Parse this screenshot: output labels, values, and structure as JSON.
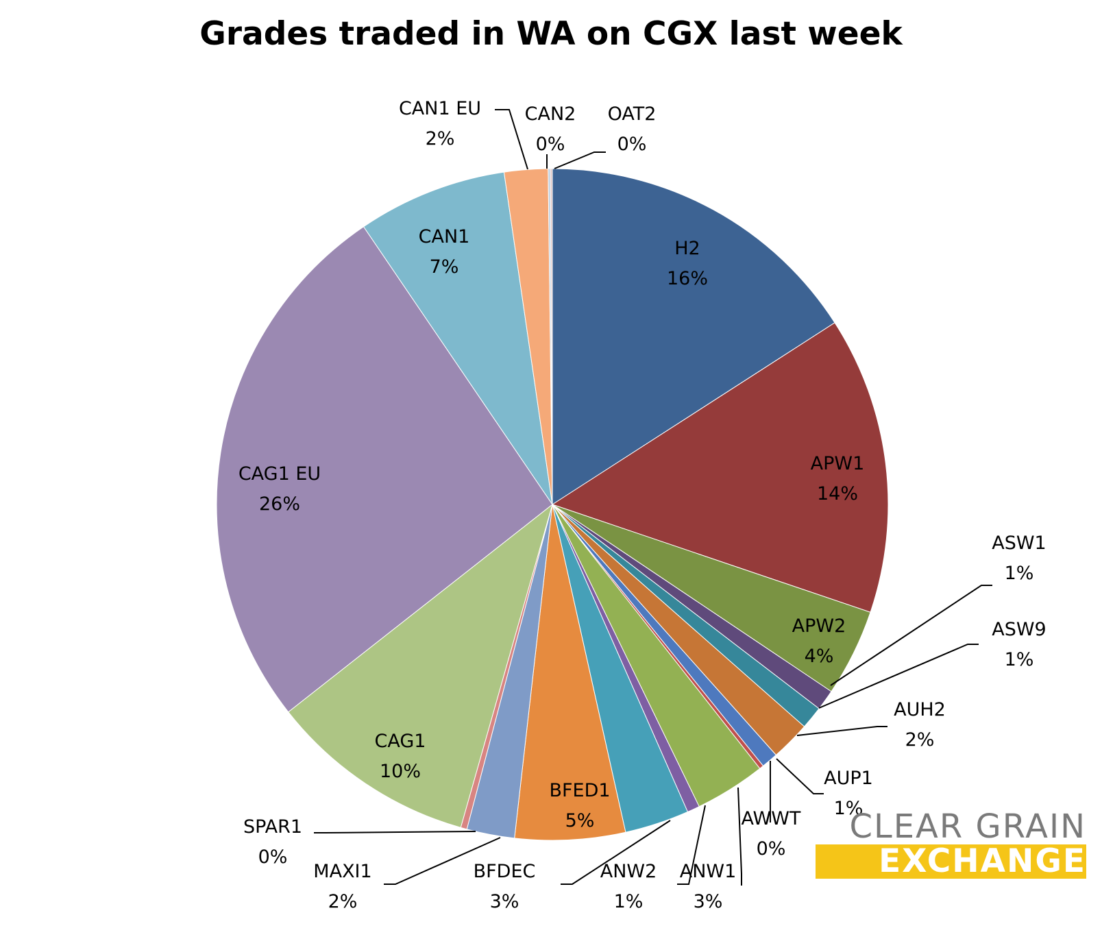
{
  "chart_data": {
    "type": "pie",
    "title": "Grades traded in WA on CGX last week",
    "slices": [
      {
        "name": "H2",
        "label": "16%",
        "value": 15.9,
        "color": "#3d6393"
      },
      {
        "name": "APW1",
        "label": "14%",
        "value": 14.3,
        "color": "#953b3a"
      },
      {
        "name": "APW2",
        "label": "4%",
        "value": 4.2,
        "color": "#7a9343"
      },
      {
        "name": "ASW1",
        "label": "1%",
        "value": 1.0,
        "color": "#5f4a7b"
      },
      {
        "name": "ASW9",
        "label": "1%",
        "value": 1.1,
        "color": "#36879a"
      },
      {
        "name": "AUH2",
        "label": "2%",
        "value": 1.9,
        "color": "#c67636"
      },
      {
        "name": "AUP1",
        "label": "1%",
        "value": 0.8,
        "color": "#4e79be"
      },
      {
        "name": "AWWT",
        "label": "0%",
        "value": 0.2,
        "color": "#c0504d"
      },
      {
        "name": "ANW1",
        "label": "3%",
        "value": 3.4,
        "color": "#93b153"
      },
      {
        "name": "ANW2",
        "label": "1%",
        "value": 0.6,
        "color": "#7e5fa3"
      },
      {
        "name": "BFDEC",
        "label": "3%",
        "value": 3.1,
        "color": "#46a0b8"
      },
      {
        "name": "BFED1",
        "label": "5%",
        "value": 5.3,
        "color": "#e68b3f"
      },
      {
        "name": "MAXI1",
        "label": "2%",
        "value": 2.3,
        "color": "#7f9bc7"
      },
      {
        "name": "SPAR1",
        "label": "0%",
        "value": 0.3,
        "color": "#d88582"
      },
      {
        "name": "CAG1",
        "label": "10%",
        "value": 10.0,
        "color": "#adc584"
      },
      {
        "name": "CAG1 EU",
        "label": "26%",
        "value": 26.1,
        "color": "#9b89b2"
      },
      {
        "name": "CAN1",
        "label": "7%",
        "value": 7.2,
        "color": "#7eb9cd"
      },
      {
        "name": "CAN1 EU",
        "label": "2%",
        "value": 2.1,
        "color": "#f5a978"
      },
      {
        "name": "CAN2",
        "label": "0%",
        "value": 0.1,
        "color": "#b8cde0"
      },
      {
        "name": "OAT2",
        "label": "0%",
        "value": 0.1,
        "color": "#dfc5c4"
      }
    ]
  },
  "logo": {
    "line1": "CLEAR GRAIN",
    "line2": "EXCHANGE",
    "line2_color": "#f5c518",
    "line1_color": "#7a7a7a"
  }
}
